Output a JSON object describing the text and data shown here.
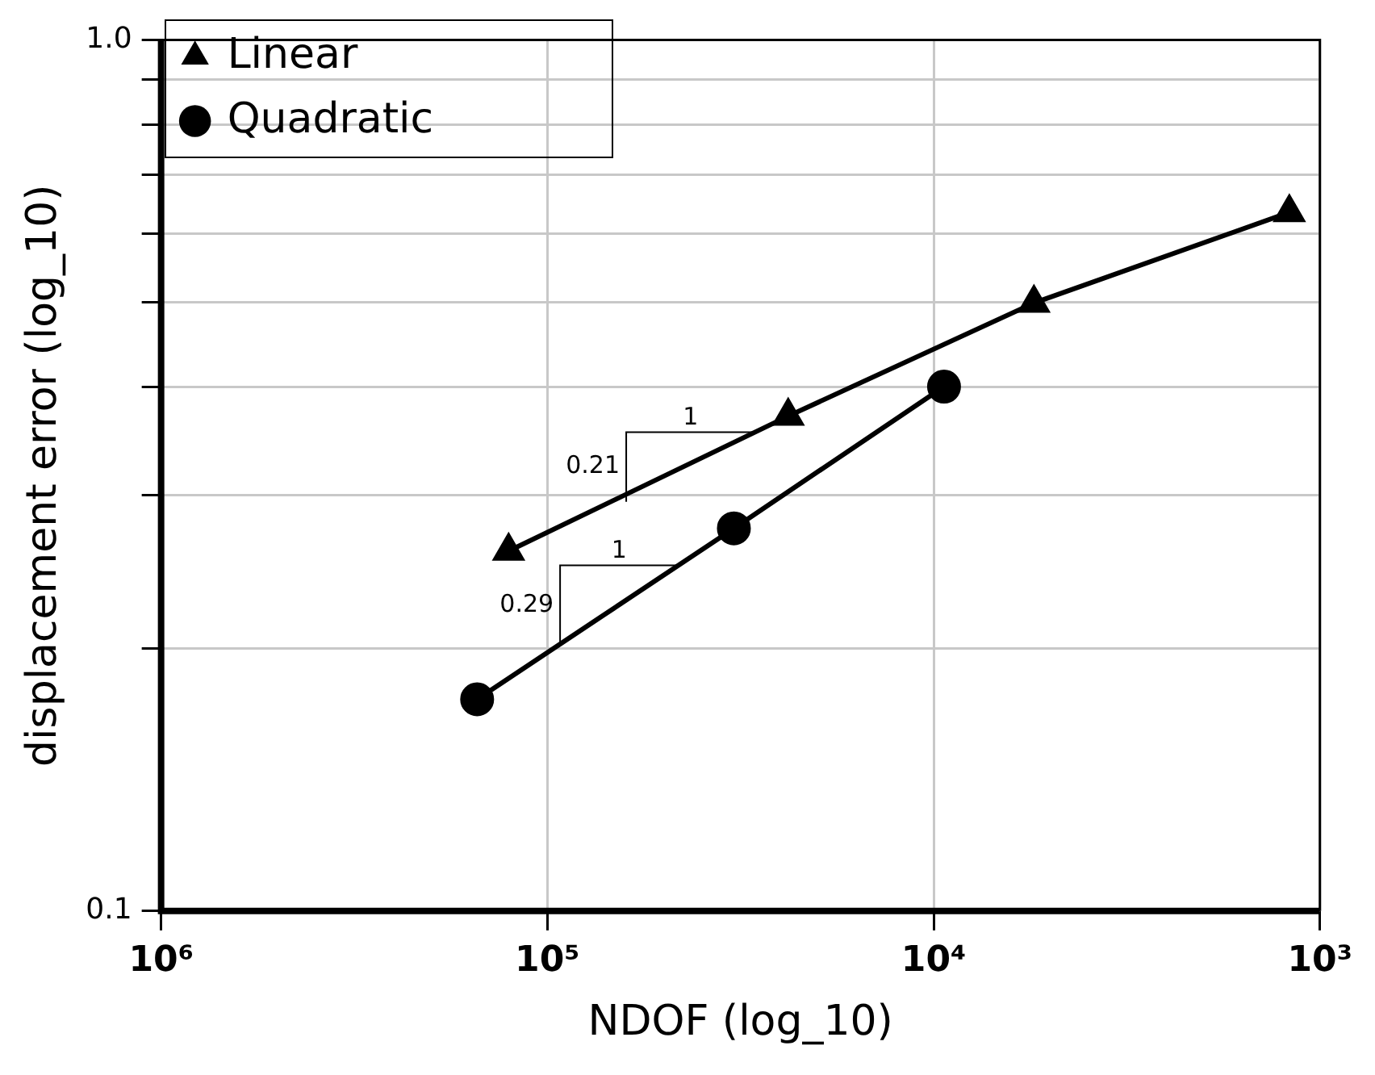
{
  "chart_data": {
    "type": "line",
    "xlabel": "NDOF (log_10)",
    "ylabel": "displacement error (log_10)",
    "log": "xy",
    "grid": true,
    "legend": "top left",
    "xlim": [
      1000000,
      1000
    ],
    "xticks": [
      {
        "value": 1000000,
        "label": "10⁶"
      },
      {
        "value": 100000,
        "label": "10⁵"
      },
      {
        "value": 10000,
        "label": "10⁴"
      },
      {
        "value": 1000,
        "label": "10³"
      }
    ],
    "ylim": [
      0.1,
      1
    ],
    "yticks": [
      0.1,
      {
        "value": 0.2,
        "label": null
      },
      {
        "value": 0.3,
        "label": null
      },
      {
        "value": 0.4,
        "label": null
      },
      {
        "value": 0.5,
        "label": null
      },
      {
        "value": 0.6,
        "label": null
      },
      {
        "value": 0.7,
        "label": null
      },
      {
        "value": 0.8,
        "label": null
      },
      {
        "value": 0.9,
        "label": null
      },
      {
        "value": 1,
        "label": "1.0"
      }
    ],
    "series": [
      {
        "name": "Linear",
        "color": "#000000",
        "marker": "triangle",
        "x": [
          126000,
          23800,
          5500,
          1200
        ],
        "values": [
          0.259,
          0.37,
          0.499,
          0.634
        ]
      },
      {
        "name": "Quadratic",
        "color": "#000000",
        "marker": "circle",
        "x": [
          152000,
          32900,
          9400
        ],
        "values": [
          0.175,
          0.275,
          0.4
        ]
      }
    ],
    "annotations": [
      "1",
      {
        "text": "0.21",
        "x": 62500,
        "y": 0.295
      },
      "1",
      {
        "text": "0.29",
        "x": 92700,
        "y": 0.202
      }
    ]
  }
}
